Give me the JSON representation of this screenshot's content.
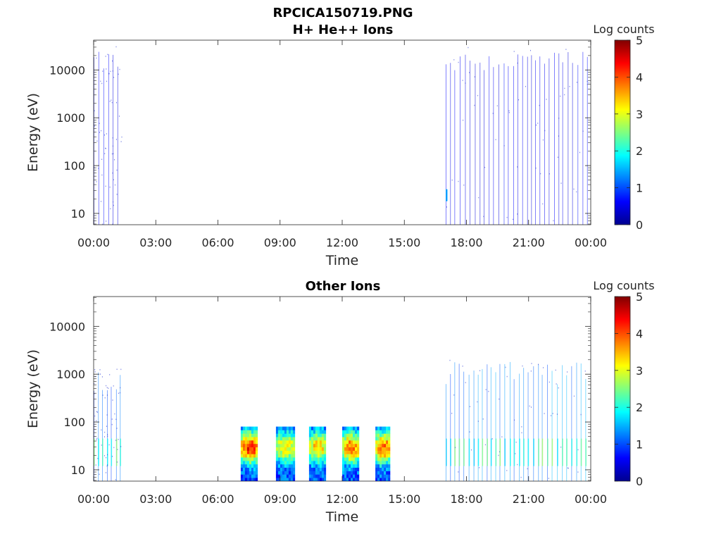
{
  "figure": {
    "title": "RPCICA150719.PNG",
    "colormap": "jet",
    "background": "#ffffff",
    "axis_color": "#262626"
  },
  "chart_data": [
    {
      "type": "heatmap",
      "title": "H+ He++ Ions",
      "xlabel": "Time",
      "ylabel": "Energy (eV)",
      "x_ticks": [
        "00:00",
        "03:00",
        "06:00",
        "09:00",
        "12:00",
        "15:00",
        "18:00",
        "21:00",
        "00:00"
      ],
      "xlim_hours": [
        0,
        24
      ],
      "y_scale": "log",
      "y_ticks": [
        {
          "value": 10,
          "label": "10"
        },
        {
          "value": 100,
          "label": "100"
        },
        {
          "value": 1000,
          "label": "1000"
        },
        {
          "value": 10000,
          "label": "10000"
        }
      ],
      "ylim": [
        5.8,
        42000
      ],
      "colorbar": {
        "label": "Log counts",
        "range": [
          0,
          5
        ],
        "ticks": [
          "0",
          "1",
          "2",
          "3",
          "4",
          "5"
        ]
      },
      "data_intervals": [
        {
          "start_hour": 0.0,
          "end_hour": 1.35,
          "emin": 5.8,
          "emax": 20000,
          "log_counts": 0.6
        },
        {
          "start_hour": 17.0,
          "end_hour": 23.95,
          "emin": 5.8,
          "emax": 20000,
          "log_counts": 0.6
        }
      ],
      "features": [
        {
          "start_hour": 17.0,
          "end_hour": 17.08,
          "emin": 18,
          "emax": 32,
          "log_counts": 1.4
        }
      ]
    },
    {
      "type": "heatmap",
      "title": "Other Ions",
      "xlabel": "Time",
      "ylabel": "Energy (eV)",
      "x_ticks": [
        "00:00",
        "03:00",
        "06:00",
        "09:00",
        "12:00",
        "15:00",
        "18:00",
        "21:00",
        "00:00"
      ],
      "xlim_hours": [
        0,
        24
      ],
      "y_scale": "log",
      "y_ticks": [
        {
          "value": 10,
          "label": "10"
        },
        {
          "value": 100,
          "label": "100"
        },
        {
          "value": 1000,
          "label": "1000"
        },
        {
          "value": 10000,
          "label": "10000"
        }
      ],
      "ylim": [
        5.8,
        42000
      ],
      "colorbar": {
        "label": "Log counts",
        "range": [
          0,
          5
        ],
        "ticks": [
          "0",
          "1",
          "2",
          "3",
          "4",
          "5"
        ]
      },
      "data_intervals": [
        {
          "start_hour": 0.0,
          "end_hour": 1.35,
          "emin": 5.8,
          "emax": 1000,
          "log_counts": 1.2
        },
        {
          "start_hour": 17.0,
          "end_hour": 23.95,
          "emin": 5.8,
          "emax": 1500,
          "log_counts": 1.3
        }
      ],
      "bursts": [
        {
          "start_hour": 7.1,
          "end_hour": 7.9,
          "emin": 5.8,
          "emax": 80,
          "peak_log_counts": 4.3
        },
        {
          "start_hour": 8.8,
          "end_hour": 9.7,
          "emin": 5.8,
          "emax": 80,
          "peak_log_counts": 3.2
        },
        {
          "start_hour": 10.4,
          "end_hour": 11.15,
          "emin": 5.8,
          "emax": 80,
          "peak_log_counts": 3.4
        },
        {
          "start_hour": 12.0,
          "end_hour": 12.75,
          "emin": 5.8,
          "emax": 80,
          "peak_log_counts": 3.9
        },
        {
          "start_hour": 13.6,
          "end_hour": 14.3,
          "emin": 5.8,
          "emax": 80,
          "peak_log_counts": 3.9
        }
      ]
    }
  ]
}
